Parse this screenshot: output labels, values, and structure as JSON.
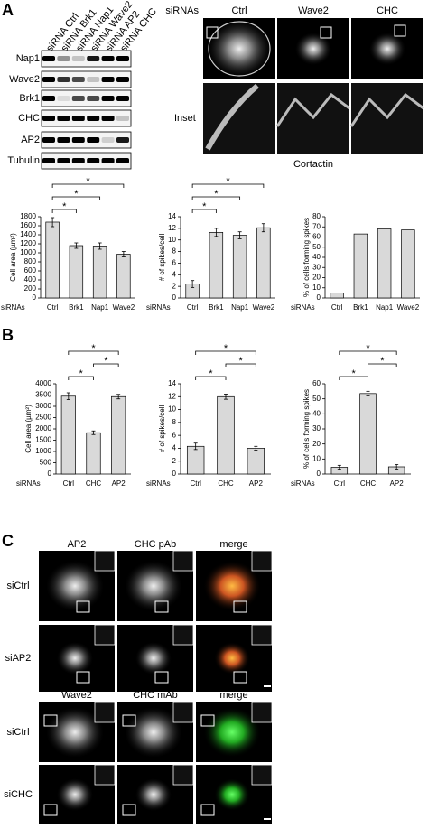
{
  "panel_labels": [
    "A",
    "B",
    "C"
  ],
  "blot": {
    "lanes": [
      "siRNA Ctrl",
      "siRNA Brk1",
      "siRNA Nap1",
      "siRNA Wave2",
      "siRNA AP2",
      "siRNA CHC"
    ],
    "rows": [
      "Nap1",
      "Wave2",
      "Brk1",
      "CHC",
      "AP2",
      "Tubulin"
    ]
  },
  "imaging_a": {
    "row_title": "siRNAs",
    "columns": [
      "Ctrl",
      "Wave2",
      "CHC"
    ],
    "inset_label": "Inset",
    "stain": "Cortactin"
  },
  "chart_data": [
    {
      "type": "bar",
      "ylabel": "Cell area (µm²)",
      "xlabel": "siRNAs",
      "color": "#d9d9d9",
      "categories": [
        "Ctrl",
        "Brk1",
        "Nap1",
        "Wave2"
      ],
      "values": [
        1680,
        1160,
        1150,
        970
      ],
      "errors": [
        100,
        60,
        70,
        60
      ],
      "ylim": [
        0,
        1800
      ],
      "yticks": [
        0,
        200,
        400,
        600,
        800,
        1000,
        1200,
        1400,
        1600,
        1800
      ],
      "significance": [
        {
          "pair": [
            "Ctrl",
            "Wave2"
          ],
          "label": "*"
        },
        {
          "pair": [
            "Ctrl",
            "Nap1"
          ],
          "label": "*"
        },
        {
          "pair": [
            "Ctrl",
            "Brk1"
          ],
          "label": "*"
        }
      ]
    },
    {
      "type": "bar",
      "ylabel": "# of spikes/cell",
      "xlabel": "siRNAs",
      "color": "#d9d9d9",
      "categories": [
        "Ctrl",
        "Brk1",
        "Nap1",
        "Wave2"
      ],
      "values": [
        2.4,
        11.3,
        10.8,
        12.1
      ],
      "errors": [
        0.6,
        0.7,
        0.6,
        0.7
      ],
      "ylim": [
        0,
        14
      ],
      "yticks": [
        0,
        2,
        4,
        6,
        8,
        10,
        12,
        14
      ],
      "significance": [
        {
          "pair": [
            "Ctrl",
            "Wave2"
          ],
          "label": "*"
        },
        {
          "pair": [
            "Ctrl",
            "Nap1"
          ],
          "label": "*"
        },
        {
          "pair": [
            "Ctrl",
            "Brk1"
          ],
          "label": "*"
        }
      ]
    },
    {
      "type": "bar",
      "ylabel": "% of cells forming spikes",
      "xlabel": "siRNAs",
      "color": "#d9d9d9",
      "categories": [
        "Ctrl",
        "Brk1",
        "Nap1",
        "Wave2"
      ],
      "values": [
        5,
        63,
        68,
        67
      ],
      "ylim": [
        0,
        80
      ],
      "yticks": [
        0,
        10,
        20,
        30,
        40,
        50,
        60,
        70,
        80
      ]
    },
    {
      "type": "bar",
      "ylabel": "Cell area (µm²)",
      "xlabel": "siRNAs",
      "color": "#d9d9d9",
      "categories": [
        "Ctrl",
        "CHC",
        "AP2"
      ],
      "values": [
        3450,
        1830,
        3430
      ],
      "errors": [
        150,
        80,
        100
      ],
      "ylim": [
        0,
        4000
      ],
      "yticks": [
        0,
        500,
        1000,
        1500,
        2000,
        2500,
        3000,
        3500,
        4000
      ],
      "significance": [
        {
          "pair": [
            "Ctrl",
            "AP2"
          ],
          "label": "*"
        },
        {
          "pair": [
            "CHC",
            "AP2"
          ],
          "label": "*"
        },
        {
          "pair": [
            "Ctrl",
            "CHC"
          ],
          "label": "*"
        }
      ]
    },
    {
      "type": "bar",
      "ylabel": "# of spikes/cell",
      "xlabel": "siRNAs",
      "color": "#d9d9d9",
      "categories": [
        "Ctrl",
        "CHC",
        "AP2"
      ],
      "values": [
        4.3,
        12.0,
        4.0
      ],
      "errors": [
        0.5,
        0.4,
        0.3
      ],
      "ylim": [
        0,
        14
      ],
      "yticks": [
        0,
        2,
        4,
        6,
        8,
        10,
        12,
        14
      ],
      "significance": [
        {
          "pair": [
            "Ctrl",
            "AP2"
          ],
          "label": "*"
        },
        {
          "pair": [
            "CHC",
            "AP2"
          ],
          "label": "*"
        },
        {
          "pair": [
            "Ctrl",
            "CHC"
          ],
          "label": "*"
        }
      ]
    },
    {
      "type": "bar",
      "ylabel": "% of cells forming spikes",
      "xlabel": "siRNAs",
      "color": "#d9d9d9",
      "categories": [
        "Ctrl",
        "CHC",
        "AP2"
      ],
      "values": [
        4.5,
        53.5,
        4.8
      ],
      "errors": [
        1.3,
        1.5,
        1.5
      ],
      "ylim": [
        0,
        60
      ],
      "yticks": [
        0,
        10,
        20,
        30,
        40,
        50,
        60
      ],
      "significance": [
        {
          "pair": [
            "Ctrl",
            "AP2"
          ],
          "label": "*"
        },
        {
          "pair": [
            "CHC",
            "AP2"
          ],
          "label": "*"
        },
        {
          "pair": [
            "Ctrl",
            "CHC"
          ],
          "label": "*"
        }
      ]
    }
  ],
  "panel_c": [
    {
      "columns": [
        {
          "label": "AP2",
          "color": "#2ca02c"
        },
        {
          "label": "CHC pAb",
          "color": "#d62728"
        },
        {
          "label": "merge",
          "color": "#000000"
        }
      ],
      "rows": [
        "siCtrl",
        "siAP2"
      ]
    },
    {
      "columns": [
        {
          "label": "Wave2",
          "color": "#2ca02c"
        },
        {
          "label": "CHC mAb",
          "color": "#d62728"
        },
        {
          "label": "merge",
          "color": "#000000"
        }
      ],
      "rows": [
        "siCtrl",
        "siCHC"
      ]
    }
  ]
}
